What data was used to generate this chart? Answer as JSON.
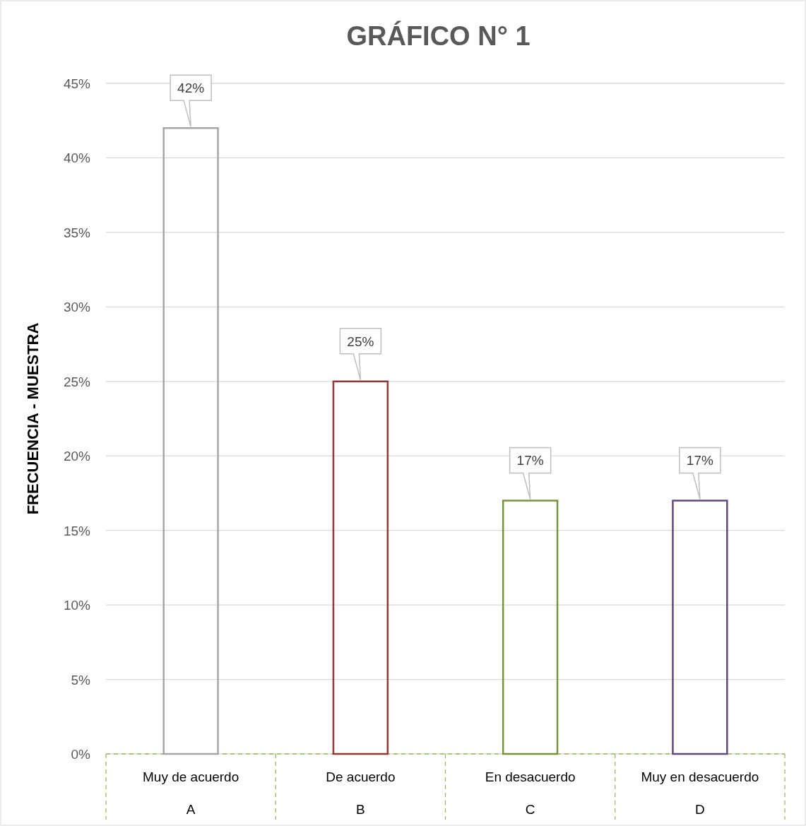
{
  "chart_data": {
    "type": "bar",
    "title": "GRÁFICO N° 1",
    "ylabel": "FRECUENCIA - MUESTRA",
    "categories": [
      "Muy de acuerdo\nA",
      "De acuerdo\nB",
      "En desacuerdo\nC",
      "Muy en desacuerdo\nD"
    ],
    "values": [
      42,
      25,
      17,
      17
    ],
    "colors": [
      "#a6a6a6",
      "#953735",
      "#77933c",
      "#604a7b"
    ],
    "ylim": [
      0,
      45
    ],
    "yticks": [
      {
        "value": 0,
        "label": "0%"
      },
      {
        "value": 5,
        "label": "5%"
      },
      {
        "value": 10,
        "label": "10%"
      },
      {
        "value": 15,
        "label": "15%"
      },
      {
        "value": 20,
        "label": "20%"
      },
      {
        "value": 25,
        "label": "25%"
      },
      {
        "value": 30,
        "label": "30%"
      },
      {
        "value": 35,
        "label": "35%"
      },
      {
        "value": 40,
        "label": "40%"
      },
      {
        "value": 45,
        "label": "45%"
      }
    ],
    "value_labels": [
      "42%",
      "25%",
      "17%",
      "17%"
    ],
    "grid": "y"
  }
}
